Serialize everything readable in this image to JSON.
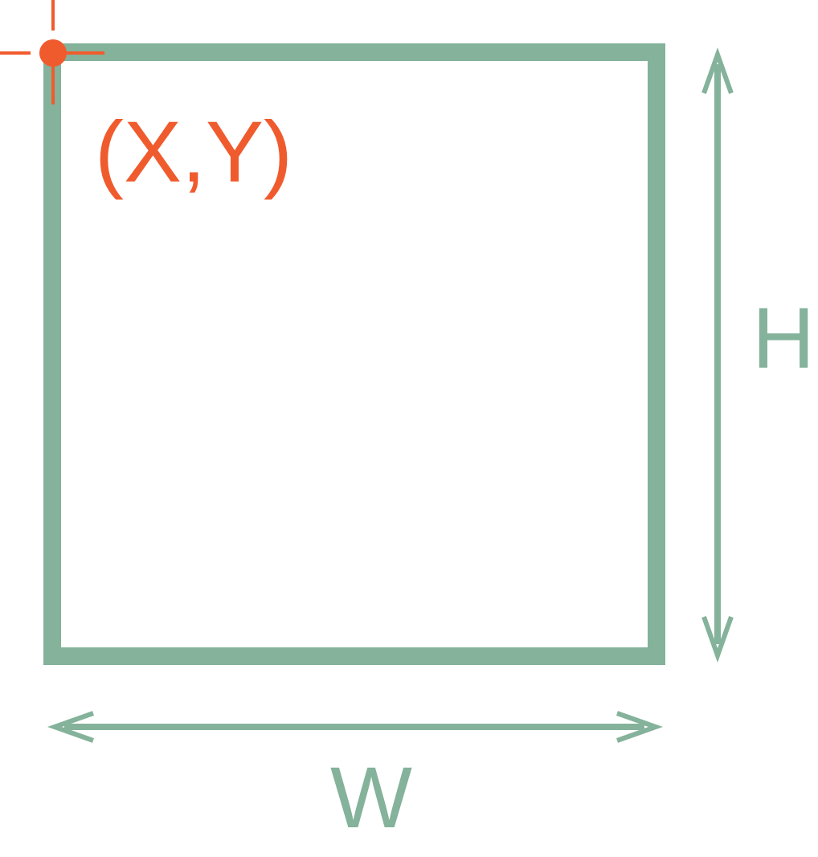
{
  "labels": {
    "origin": "(X,Y)",
    "width": "W",
    "height": "H"
  },
  "colors": {
    "box": "#84b29a",
    "origin": "#f05b2e",
    "background": "#ffffff"
  }
}
